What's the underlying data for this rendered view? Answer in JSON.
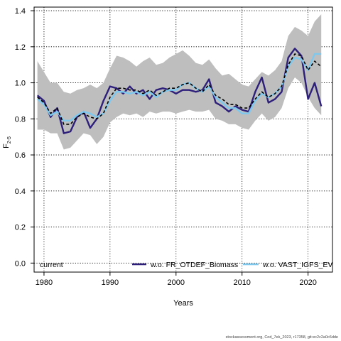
{
  "chart_data": {
    "type": "line",
    "xlabel": "Years",
    "ylabel_main": "F",
    "ylabel_sub": "2-5",
    "xlim": [
      1978.5,
      2023.7
    ],
    "ylim": [
      -0.05,
      1.42
    ],
    "x_ticks": [
      1980,
      1990,
      2000,
      2010,
      2020
    ],
    "y_ticks": [
      0.0,
      0.2,
      0.4,
      0.6,
      0.8,
      1.0,
      1.2,
      1.4
    ],
    "y_tick_labels": [
      "0.0",
      "0.2",
      "0.4",
      "0.6",
      "0.8",
      "1.0",
      "1.2",
      "1.4"
    ],
    "grid": true,
    "x": [
      1979,
      1980,
      1981,
      1982,
      1983,
      1984,
      1985,
      1986,
      1987,
      1988,
      1989,
      1990,
      1991,
      1992,
      1993,
      1994,
      1995,
      1996,
      1997,
      1998,
      1999,
      2000,
      2001,
      2002,
      2003,
      2004,
      2005,
      2006,
      2007,
      2008,
      2009,
      2010,
      2011,
      2012,
      2013,
      2014,
      2015,
      2016,
      2017,
      2018,
      2019,
      2020,
      2021,
      2022
    ],
    "band_upper": [
      1.12,
      1.06,
      1.0,
      1.0,
      0.95,
      0.94,
      0.96,
      0.97,
      0.99,
      0.97,
      1.0,
      1.08,
      1.15,
      1.14,
      1.12,
      1.09,
      1.12,
      1.14,
      1.1,
      1.11,
      1.14,
      1.16,
      1.18,
      1.15,
      1.11,
      1.1,
      1.13,
      1.08,
      1.04,
      1.05,
      1.02,
      0.99,
      0.98,
      1.02,
      1.06,
      1.04,
      1.07,
      1.12,
      1.26,
      1.31,
      1.29,
      1.26,
      1.34,
      1.38
    ],
    "band_lower": [
      0.74,
      0.74,
      0.72,
      0.72,
      0.63,
      0.64,
      0.68,
      0.72,
      0.71,
      0.66,
      0.7,
      0.78,
      0.81,
      0.83,
      0.82,
      0.83,
      0.81,
      0.84,
      0.83,
      0.84,
      0.84,
      0.83,
      0.84,
      0.85,
      0.84,
      0.84,
      0.85,
      0.8,
      0.79,
      0.77,
      0.77,
      0.75,
      0.74,
      0.79,
      0.83,
      0.79,
      0.81,
      0.86,
      0.97,
      1.03,
      1.0,
      0.92,
      0.86,
      0.82
    ],
    "series": [
      {
        "name": "current",
        "color": "#000000",
        "dash": "4,3",
        "values": [
          0.92,
          0.89,
          0.83,
          0.86,
          0.77,
          0.77,
          0.81,
          0.83,
          0.81,
          0.8,
          0.83,
          0.92,
          0.97,
          0.97,
          0.96,
          0.96,
          0.94,
          0.96,
          0.93,
          0.95,
          0.97,
          0.97,
          0.99,
          1.0,
          0.97,
          0.95,
          0.99,
          0.93,
          0.91,
          0.88,
          0.88,
          0.86,
          0.86,
          0.91,
          0.95,
          0.92,
          0.94,
          0.98,
          1.1,
          1.16,
          1.15,
          1.07,
          1.12,
          1.09
        ]
      },
      {
        "name": "w.o. FR_OTDEF_Biomass",
        "color": "#2e1f7a",
        "dash": "",
        "values": [
          0.93,
          0.9,
          0.81,
          0.86,
          0.72,
          0.73,
          0.81,
          0.84,
          0.75,
          0.8,
          0.9,
          0.98,
          0.97,
          0.94,
          0.98,
          0.94,
          0.96,
          0.91,
          0.96,
          0.97,
          0.96,
          0.94,
          0.96,
          0.96,
          0.95,
          0.96,
          1.02,
          0.89,
          0.87,
          0.84,
          0.87,
          0.85,
          0.84,
          0.95,
          1.03,
          0.89,
          0.91,
          0.95,
          1.14,
          1.19,
          1.15,
          0.91,
          1.0,
          0.87
        ]
      },
      {
        "name": "w.o. VAST_IGFS_EV",
        "color": "#7ec8ee",
        "dash": "",
        "values": [
          0.91,
          0.88,
          0.82,
          0.84,
          0.79,
          0.79,
          0.82,
          0.84,
          0.83,
          0.81,
          0.83,
          0.9,
          0.95,
          0.95,
          0.94,
          0.95,
          0.93,
          0.95,
          0.92,
          0.95,
          0.96,
          0.96,
          0.99,
          1.0,
          0.97,
          0.95,
          0.98,
          0.92,
          0.89,
          0.86,
          0.86,
          0.83,
          0.83,
          0.9,
          0.94,
          0.92,
          0.94,
          0.98,
          1.09,
          1.14,
          1.13,
          1.07,
          1.16,
          1.16
        ]
      }
    ],
    "band_color": "#bebebe"
  },
  "footer_text": "stockassessment.org, Cod_7ek_2023, r17358, git:ec2c2a0c6dde"
}
